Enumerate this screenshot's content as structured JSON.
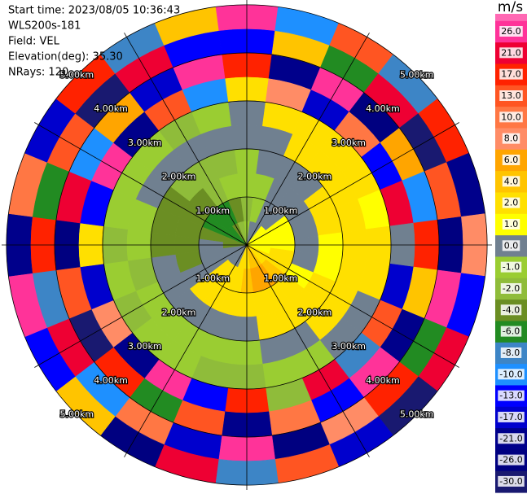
{
  "chart_data": {
    "type": "ppi",
    "info": [
      "Start time: 2023/08/05 10:36:43",
      "WLS200s-181",
      "Field: VEL",
      "Elevation(deg): 35.30",
      "NRays: 120"
    ],
    "rlim": [
      0,
      5.1
    ],
    "range_rings": [
      {
        "value": 1,
        "label": "1.00km"
      },
      {
        "value": 2,
        "label": "2.00km"
      },
      {
        "value": 3,
        "label": "3.00km"
      },
      {
        "value": 4,
        "label": "4.00km"
      },
      {
        "value": 5,
        "label": "5.00km"
      }
    ],
    "field": {
      "azimuths": [
        0,
        15,
        30,
        45,
        60,
        75,
        90,
        105,
        120,
        135,
        150,
        165,
        180,
        195,
        210,
        225,
        240,
        255,
        270,
        285,
        300,
        315,
        330,
        345
      ],
      "gates": [
        0,
        0.5,
        1,
        1.5,
        2,
        2.5,
        3,
        3.5,
        4,
        4.5,
        5
      ],
      "values": [
        [
          -1,
          -2,
          -1,
          -1,
          0,
          0,
          2,
          17,
          -13,
          26
        ],
        [
          0,
          -1,
          -1,
          0,
          0,
          2,
          8,
          -21,
          4,
          -10
        ],
        [
          0,
          0,
          0,
          0,
          2,
          2,
          -17,
          26,
          -6,
          13
        ],
        [
          1,
          0,
          0,
          0,
          2,
          2,
          10,
          -26,
          21,
          -8
        ],
        [
          1,
          1,
          0,
          2,
          2,
          2,
          -13,
          6,
          -30,
          17
        ],
        [
          1,
          1,
          0,
          2,
          2,
          1,
          21,
          -10,
          13,
          -21
        ],
        [
          1,
          1,
          0,
          1,
          2,
          2,
          0,
          17,
          -26,
          8
        ],
        [
          1,
          2,
          0,
          1,
          2,
          2,
          -17,
          4,
          26,
          -13
        ],
        [
          2,
          2,
          1,
          2,
          2,
          0,
          13,
          -21,
          -6,
          21
        ],
        [
          2,
          4,
          2,
          2,
          2,
          0,
          -8,
          26,
          17,
          -30
        ],
        [
          4,
          6,
          2,
          2,
          0,
          -1,
          21,
          -13,
          8,
          -17
        ],
        [
          4,
          6,
          2,
          2,
          0,
          -1,
          -2,
          10,
          -26,
          13
        ],
        [
          2,
          4,
          2,
          0,
          -1,
          -2,
          17,
          -21,
          26,
          -8
        ],
        [
          2,
          2,
          2,
          0,
          -1,
          -2,
          -13,
          13,
          -17,
          21
        ],
        [
          0,
          2,
          2,
          0,
          -1,
          -1,
          26,
          -6,
          10,
          -26
        ],
        [
          0,
          2,
          2,
          0,
          -1,
          -1,
          -21,
          17,
          -10,
          4
        ],
        [
          0,
          0,
          0,
          0,
          -1,
          -2,
          8,
          -30,
          21,
          -13
        ],
        [
          0,
          0,
          -4,
          0,
          -2,
          -1,
          -17,
          13,
          -8,
          26
        ],
        [
          -4,
          0,
          -4,
          -4,
          -1,
          -2,
          2,
          -26,
          17,
          -21
        ],
        [
          -4,
          -4,
          -4,
          -4,
          -1,
          -1,
          -13,
          21,
          -6,
          10
        ],
        [
          -6,
          -6,
          -4,
          -4,
          0,
          -1,
          26,
          -10,
          13,
          -17
        ],
        [
          -6,
          -6,
          -4,
          -2,
          0,
          -1,
          -21,
          6,
          -30,
          17
        ],
        [
          -4,
          -6,
          -2,
          -2,
          0,
          -2,
          13,
          -17,
          21,
          -8
        ],
        [
          -2,
          -4,
          -1,
          -2,
          0,
          -1,
          -10,
          26,
          -13,
          4
        ]
      ]
    },
    "colorbar": {
      "unit": "m/s",
      "over_color": "#ff69b4",
      "levels": [
        {
          "value": 26,
          "label": "26.0"
        },
        {
          "value": 21,
          "label": "21.0"
        },
        {
          "value": 17,
          "label": "17.0"
        },
        {
          "value": 13,
          "label": "13.0"
        },
        {
          "value": 10,
          "label": "10.0"
        },
        {
          "value": 8,
          "label": "8.0"
        },
        {
          "value": 6,
          "label": "6.0"
        },
        {
          "value": 4,
          "label": "4.0"
        },
        {
          "value": 2,
          "label": "2.0"
        },
        {
          "value": 1,
          "label": "1.0"
        },
        {
          "value": 0,
          "label": "0.0"
        },
        {
          "value": -1,
          "label": "-1.0"
        },
        {
          "value": -2,
          "label": "-2.0"
        },
        {
          "value": -4,
          "label": "-4.0"
        },
        {
          "value": -6,
          "label": "-6.0"
        },
        {
          "value": -8,
          "label": "-8.0"
        },
        {
          "value": -10,
          "label": "-10.0"
        },
        {
          "value": -13,
          "label": "-13.0"
        },
        {
          "value": -17,
          "label": "-17.0"
        },
        {
          "value": -21,
          "label": "-21.0"
        },
        {
          "value": -26,
          "label": "-26.0"
        },
        {
          "value": -30,
          "label": "-30.0"
        }
      ],
      "colors": [
        "#ff3399",
        "#ee0033",
        "#ff2200",
        "#ff5522",
        "#ff7744",
        "#ff8c66",
        "#ffa500",
        "#ffc400",
        "#ffe000",
        "#ffff00",
        "#708090",
        "#9acd32",
        "#8fbc3a",
        "#6b8e23",
        "#228b22",
        "#3d85c6",
        "#1e90ff",
        "#0000ff",
        "#0000cd",
        "#00008b",
        "#000080",
        "#191970"
      ]
    }
  }
}
